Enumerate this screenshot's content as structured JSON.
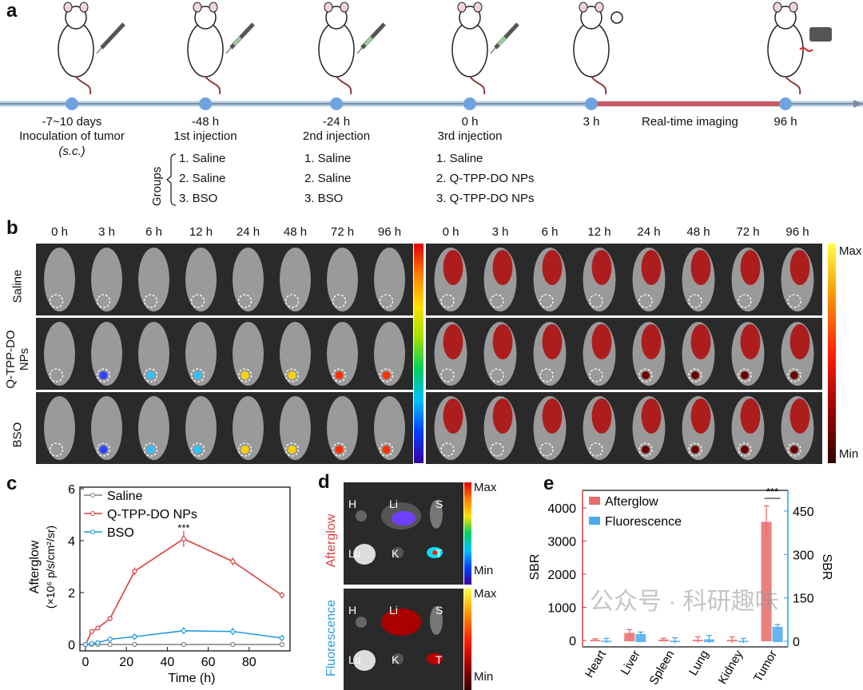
{
  "panels": {
    "a": "a",
    "b": "b",
    "c": "c",
    "d": "d",
    "e": "e"
  },
  "timeline": {
    "points": [
      {
        "time": "-7~10 days",
        "desc": "Inoculation of tumor",
        "sub": "(s.c.)"
      },
      {
        "time": "-48 h",
        "desc": "1st injection"
      },
      {
        "time": "-24 h",
        "desc": "2nd injection"
      },
      {
        "time": "0 h",
        "desc": "3rd injection"
      },
      {
        "time": "3 h"
      },
      {
        "time": "96 h"
      }
    ],
    "imaging_label": "Real-time imaging",
    "groups_label": "Groups",
    "groups": [
      [
        "1. Saline",
        "2. Saline",
        "3. BSO"
      ],
      [
        "1. Saline",
        "2. Saline",
        "3. BSO"
      ],
      [
        "1.  Saline",
        "2. Q-TPP-DO NPs",
        "3. Q-TPP-DO NPs"
      ]
    ]
  },
  "imaging": {
    "timepoints": [
      "0 h",
      "3 h",
      "6 h",
      "12 h",
      "24 h",
      "48 h",
      "72 h",
      "96 h"
    ],
    "rows": [
      "Saline",
      "Q-TPP-DO NPs",
      "BSO"
    ],
    "scale_max": "Max",
    "scale_min": "Min"
  },
  "organs": {
    "rows": [
      "Afterglow",
      "Fluorescence"
    ],
    "labels": [
      "H",
      "Li",
      "S",
      "Lu",
      "K",
      "T"
    ],
    "scale_max": "Max",
    "scale_min": "Min",
    "colors": {
      "afterglow": "#d9413f",
      "fluorescence": "#2e9be0"
    }
  },
  "watermark": "公众号 · 科研趣味",
  "chart_data": [
    {
      "type": "line",
      "xlabel": "Time (h)",
      "ylabel": "Afterglow",
      "ylabel2": "(×10⁶ p/s/cm²/sr)",
      "xlim": [
        0,
        96
      ],
      "ylim": [
        0,
        6
      ],
      "xticks": [
        0,
        20,
        40,
        60,
        80
      ],
      "yticks": [
        0,
        2,
        4,
        6
      ],
      "legend": "top-left",
      "annotation": "***",
      "x": [
        0,
        3,
        6,
        12,
        24,
        48,
        72,
        96
      ],
      "series": [
        {
          "name": "Saline",
          "color": "#808080",
          "values": [
            0,
            0,
            0,
            0,
            0,
            0,
            0,
            0
          ],
          "errors": [
            0.03,
            0.05,
            0.05,
            0.05,
            0.06,
            0.08,
            0.06,
            0.06
          ]
        },
        {
          "name": "Q-TPP-DO NPs",
          "color": "#d9413f",
          "values": [
            0,
            0.5,
            0.63,
            1.0,
            2.82,
            4.07,
            3.2,
            1.9
          ],
          "errors": [
            0.02,
            0.08,
            0.08,
            0.1,
            0.15,
            0.3,
            0.15,
            0.12
          ]
        },
        {
          "name": "BSO",
          "color": "#1e9be0",
          "values": [
            0,
            0.04,
            0.07,
            0.2,
            0.3,
            0.53,
            0.5,
            0.25
          ],
          "errors": [
            0.02,
            0.05,
            0.05,
            0.1,
            0.12,
            0.14,
            0.14,
            0.12
          ]
        }
      ]
    },
    {
      "type": "bar",
      "categories": [
        "Heart",
        "Liver",
        "Spleen",
        "Lung",
        "Kidney",
        "Tumor"
      ],
      "ylabel": "SBR",
      "ylabel_right": "SBR",
      "ylim": [
        -200,
        4500
      ],
      "ylim_right": [
        -22.5,
        506
      ],
      "yticks": [
        0,
        1000,
        2000,
        3000,
        4000
      ],
      "yticks_right": [
        0,
        150,
        300,
        450
      ],
      "legend": "top-left",
      "annotation": "***",
      "series": [
        {
          "name": "Afterglow",
          "axis": "left",
          "color": "#e86a6a",
          "values": [
            20,
            230,
            30,
            20,
            20,
            3580
          ],
          "errors": [
            30,
            100,
            40,
            90,
            90,
            480
          ]
        },
        {
          "name": "Fluorescence",
          "axis": "right",
          "color": "#4aaaf0",
          "values": [
            2,
            25,
            2,
            7,
            2,
            50
          ],
          "errors": [
            8,
            7,
            10,
            13,
            8,
            8
          ]
        }
      ]
    }
  ]
}
